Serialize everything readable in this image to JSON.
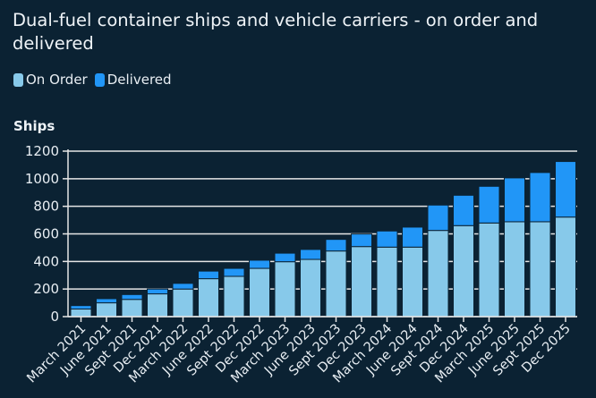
{
  "chart_data": {
    "type": "bar",
    "stacked": true,
    "title": "Dual-fuel container ships and vehicle carriers - on order and delivered",
    "ylabel": "Ships",
    "xlabel": "",
    "ylim": [
      0,
      1200
    ],
    "yticks": [
      0,
      200,
      400,
      600,
      800,
      1000,
      1200
    ],
    "grid": true,
    "legend": "top-left",
    "categories": [
      "March 2021",
      "June 2021",
      "Sept 2021",
      "Dec 2021",
      "March 2022",
      "June 2022",
      "Sept 2022",
      "Dec 2022",
      "March 2023",
      "June 2023",
      "Sept 2023",
      "Dec 2023",
      "March 2024",
      "June 2024",
      "Sept 2024",
      "Dec 2024",
      "March 2025",
      "June 2025",
      "Sept 2025",
      "Dec 2025"
    ],
    "series": [
      {
        "name": "On Order",
        "color": "#87c9ea",
        "values": [
          55,
          100,
          125,
          165,
          200,
          275,
          292,
          350,
          398,
          415,
          476,
          508,
          504,
          504,
          625,
          660,
          679,
          688,
          688,
          722
        ]
      },
      {
        "name": "Delivered",
        "color": "#2196f7",
        "values": [
          25,
          30,
          35,
          35,
          41,
          55,
          58,
          59,
          62,
          72,
          84,
          91,
          117,
          145,
          184,
          220,
          266,
          318,
          357,
          403
        ]
      }
    ]
  },
  "colors": {
    "background": "#0b2233",
    "grid": "#e6e6e6"
  }
}
